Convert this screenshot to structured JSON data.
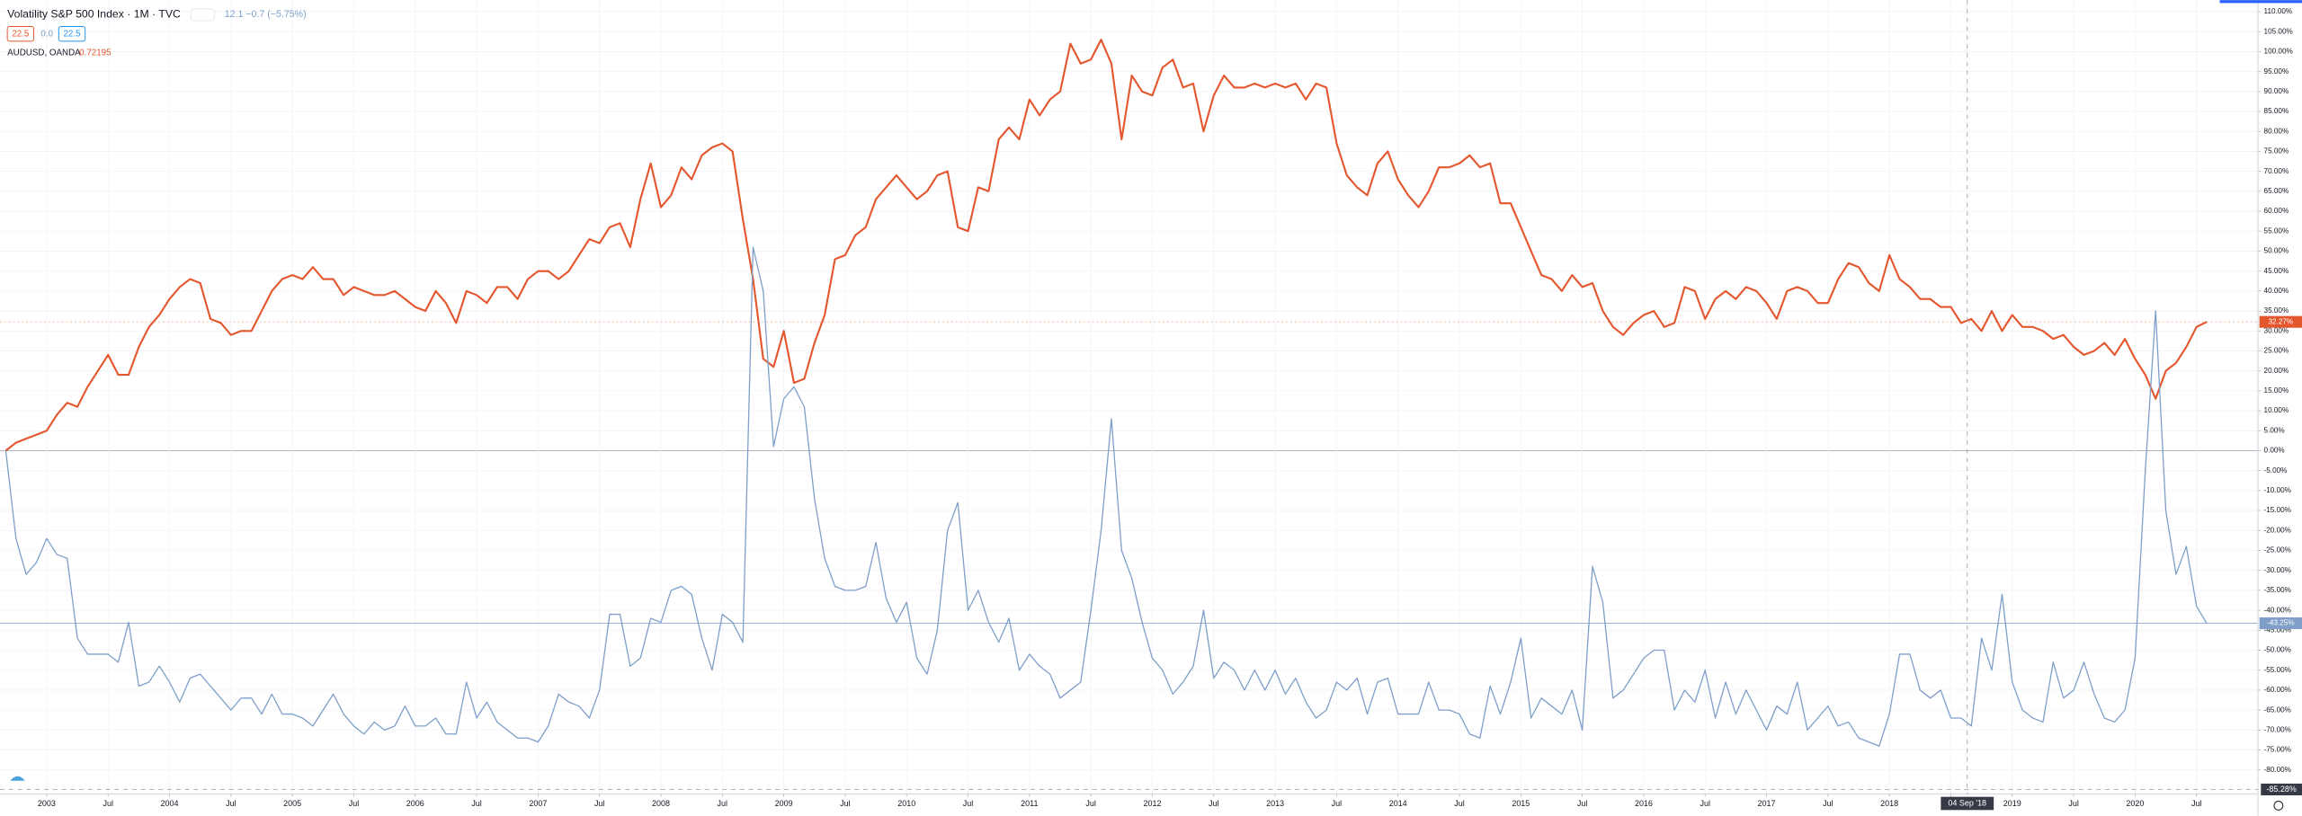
{
  "chart_data": {
    "type": "line",
    "title": "Volatility S&P 500 Index · 1M · TVC",
    "quote": "12.1 −0.7 (−5.75%)",
    "inputs": [
      "22.5",
      "0.0",
      "22.5"
    ],
    "compare_price": "0.72195",
    "crosshair_x_label": "04 Sep '18",
    "crosshair_y_label": "-85.28%",
    "grid": true,
    "xlim": [
      2002.62,
      2021.0
    ],
    "ylim": [
      -86,
      112.9
    ],
    "xticks": [
      {
        "value": 2003,
        "label": "2003"
      },
      {
        "value": 2003.5,
        "label": "Jul"
      },
      {
        "value": 2004,
        "label": "2004"
      },
      {
        "value": 2004.5,
        "label": "Jul"
      },
      {
        "value": 2005,
        "label": "2005"
      },
      {
        "value": 2005.5,
        "label": "Jul"
      },
      {
        "value": 2006,
        "label": "2006"
      },
      {
        "value": 2006.5,
        "label": "Jul"
      },
      {
        "value": 2007,
        "label": "2007"
      },
      {
        "value": 2007.5,
        "label": "Jul"
      },
      {
        "value": 2008,
        "label": "2008"
      },
      {
        "value": 2008.5,
        "label": "Jul"
      },
      {
        "value": 2009,
        "label": "2009"
      },
      {
        "value": 2009.5,
        "label": "Jul"
      },
      {
        "value": 2010,
        "label": "2010"
      },
      {
        "value": 2010.5,
        "label": "Jul"
      },
      {
        "value": 2011,
        "label": "2011"
      },
      {
        "value": 2011.5,
        "label": "Jul"
      },
      {
        "value": 2012,
        "label": "2012"
      },
      {
        "value": 2012.5,
        "label": "Jul"
      },
      {
        "value": 2013,
        "label": "2013"
      },
      {
        "value": 2013.5,
        "label": "Jul"
      },
      {
        "value": 2014,
        "label": "2014"
      },
      {
        "value": 2014.5,
        "label": "Jul"
      },
      {
        "value": 2015,
        "label": "2015"
      },
      {
        "value": 2015.5,
        "label": "Jul"
      },
      {
        "value": 2016,
        "label": "2016"
      },
      {
        "value": 2016.5,
        "label": "Jul"
      },
      {
        "value": 2017,
        "label": "2017"
      },
      {
        "value": 2017.5,
        "label": "Jul"
      },
      {
        "value": 2018,
        "label": "2018"
      },
      {
        "value": 2018.5,
        "label": "Jul"
      },
      {
        "value": 2019,
        "label": "2019"
      },
      {
        "value": 2019.5,
        "label": "Jul"
      },
      {
        "value": 2020,
        "label": "2020"
      },
      {
        "value": 2020.5,
        "label": "Jul"
      }
    ],
    "yticks": [
      {
        "value": 110,
        "label": "110.00%"
      },
      {
        "value": 105,
        "label": "105.00%"
      },
      {
        "value": 100,
        "label": "100.00%"
      },
      {
        "value": 95,
        "label": "95.00%"
      },
      {
        "value": 90,
        "label": "90.00%"
      },
      {
        "value": 85,
        "label": "85.00%"
      },
      {
        "value": 80,
        "label": "80.00%"
      },
      {
        "value": 75,
        "label": "75.00%"
      },
      {
        "value": 70,
        "label": "70.00%"
      },
      {
        "value": 65,
        "label": "65.00%"
      },
      {
        "value": 60,
        "label": "60.00%"
      },
      {
        "value": 55,
        "label": "55.00%"
      },
      {
        "value": 50,
        "label": "50.00%"
      },
      {
        "value": 45,
        "label": "45.00%"
      },
      {
        "value": 40,
        "label": "40.00%"
      },
      {
        "value": 35,
        "label": "35.00%"
      },
      {
        "value": 30,
        "label": "30.00%"
      },
      {
        "value": 25,
        "label": "25.00%"
      },
      {
        "value": 20,
        "label": "20.00%"
      },
      {
        "value": 15,
        "label": "15.00%"
      },
      {
        "value": 10,
        "label": "10.00%"
      },
      {
        "value": 5,
        "label": "5.00%"
      },
      {
        "value": 0,
        "label": "0.00%"
      },
      {
        "value": -5,
        "label": "-5.00%"
      },
      {
        "value": -10,
        "label": "-10.00%"
      },
      {
        "value": -15,
        "label": "-15.00%"
      },
      {
        "value": -20,
        "label": "-20.00%"
      },
      {
        "value": -25,
        "label": "-25.00%"
      },
      {
        "value": -30,
        "label": "-30.00%"
      },
      {
        "value": -35,
        "label": "-35.00%"
      },
      {
        "value": -40,
        "label": "-40.00%"
      },
      {
        "value": -45,
        "label": "-45.00%"
      },
      {
        "value": -50,
        "label": "-50.00%"
      },
      {
        "value": -55,
        "label": "-55.00%"
      },
      {
        "value": -60,
        "label": "-60.00%"
      },
      {
        "value": -65,
        "label": "-65.00%"
      },
      {
        "value": -70,
        "label": "-70.00%"
      },
      {
        "value": -75,
        "label": "-75.00%"
      },
      {
        "value": -80,
        "label": "-80.00%"
      }
    ],
    "x": [
      2002.667,
      2002.75,
      2002.833,
      2002.917,
      2003,
      2003.083,
      2003.167,
      2003.25,
      2003.333,
      2003.417,
      2003.5,
      2003.583,
      2003.667,
      2003.75,
      2003.833,
      2003.917,
      2004,
      2004.083,
      2004.167,
      2004.25,
      2004.333,
      2004.417,
      2004.5,
      2004.583,
      2004.667,
      2004.75,
      2004.833,
      2004.917,
      2005,
      2005.083,
      2005.167,
      2005.25,
      2005.333,
      2005.417,
      2005.5,
      2005.583,
      2005.667,
      2005.75,
      2005.833,
      2005.917,
      2006,
      2006.083,
      2006.167,
      2006.25,
      2006.333,
      2006.417,
      2006.5,
      2006.583,
      2006.667,
      2006.75,
      2006.833,
      2006.917,
      2007,
      2007.083,
      2007.167,
      2007.25,
      2007.333,
      2007.417,
      2007.5,
      2007.583,
      2007.667,
      2007.75,
      2007.833,
      2007.917,
      2008,
      2008.083,
      2008.167,
      2008.25,
      2008.333,
      2008.417,
      2008.5,
      2008.583,
      2008.667,
      2008.75,
      2008.833,
      2008.917,
      2009,
      2009.083,
      2009.167,
      2009.25,
      2009.333,
      2009.417,
      2009.5,
      2009.583,
      2009.667,
      2009.75,
      2009.833,
      2009.917,
      2010,
      2010.083,
      2010.167,
      2010.25,
      2010.333,
      2010.417,
      2010.5,
      2010.583,
      2010.667,
      2010.75,
      2010.833,
      2010.917,
      2011,
      2011.083,
      2011.167,
      2011.25,
      2011.333,
      2011.417,
      2011.5,
      2011.583,
      2011.667,
      2011.75,
      2011.833,
      2011.917,
      2012,
      2012.083,
      2012.167,
      2012.25,
      2012.333,
      2012.417,
      2012.5,
      2012.583,
      2012.667,
      2012.75,
      2012.833,
      2012.917,
      2013,
      2013.083,
      2013.167,
      2013.25,
      2013.333,
      2013.417,
      2013.5,
      2013.583,
      2013.667,
      2013.75,
      2013.833,
      2013.917,
      2014,
      2014.083,
      2014.167,
      2014.25,
      2014.333,
      2014.417,
      2014.5,
      2014.583,
      2014.667,
      2014.75,
      2014.833,
      2014.917,
      2015,
      2015.083,
      2015.167,
      2015.25,
      2015.333,
      2015.417,
      2015.5,
      2015.583,
      2015.667,
      2015.75,
      2015.833,
      2015.917,
      2016,
      2016.083,
      2016.167,
      2016.25,
      2016.333,
      2016.417,
      2016.5,
      2016.583,
      2016.667,
      2016.75,
      2016.833,
      2016.917,
      2017,
      2017.083,
      2017.167,
      2017.25,
      2017.333,
      2017.417,
      2017.5,
      2017.583,
      2017.667,
      2017.75,
      2017.833,
      2017.917,
      2018,
      2018.083,
      2018.167,
      2018.25,
      2018.333,
      2018.417,
      2018.5,
      2018.583,
      2018.667,
      2018.75,
      2018.833,
      2018.917,
      2019,
      2019.083,
      2019.167,
      2019.25,
      2019.333,
      2019.417,
      2019.5,
      2019.583,
      2019.667,
      2019.75,
      2019.833,
      2019.917,
      2020,
      2020.083,
      2020.167,
      2020.25,
      2020.333,
      2020.417,
      2020.5,
      2020.583
    ],
    "series": [
      {
        "name": "AUDUSD, OANDA",
        "color": "#e4572e",
        "last_label": "32.27%",
        "values": [
          0,
          2,
          3,
          4,
          5,
          9,
          12,
          11,
          16,
          20,
          24,
          19,
          19,
          26,
          31,
          34,
          38,
          41,
          43,
          42,
          33,
          32,
          29,
          30,
          30,
          35,
          40,
          43,
          44,
          43,
          46,
          43,
          43,
          39,
          41,
          40,
          39,
          39,
          40,
          38,
          36,
          35,
          40,
          37,
          32,
          40,
          39,
          37,
          41,
          41,
          38,
          43,
          45,
          45,
          43,
          45,
          49,
          53,
          52,
          56,
          57,
          51,
          63,
          72,
          61,
          64,
          71,
          68,
          74,
          76,
          77,
          75,
          58,
          43,
          23,
          21,
          30,
          17,
          18,
          27,
          34,
          48,
          49,
          54,
          56,
          63,
          66,
          69,
          66,
          63,
          65,
          69,
          70,
          56,
          55,
          66,
          65,
          78,
          81,
          78,
          88,
          84,
          88,
          90,
          102,
          97,
          98,
          103,
          97,
          78,
          94,
          90,
          89,
          96,
          98,
          91,
          92,
          80,
          89,
          94,
          91,
          91,
          92,
          91,
          92,
          91,
          92,
          88,
          92,
          91,
          77,
          69,
          66,
          64,
          72,
          75,
          68,
          64,
          61,
          65,
          71,
          71,
          72,
          74,
          71,
          72,
          62,
          62,
          56,
          50,
          44,
          43,
          40,
          44,
          41,
          42,
          35,
          31,
          29,
          32,
          34,
          35,
          31,
          32,
          41,
          40,
          33,
          38,
          40,
          38,
          41,
          40,
          37,
          33,
          40,
          41,
          40,
          37,
          37,
          43,
          47,
          46,
          42,
          40,
          49,
          43,
          41,
          38,
          38,
          36,
          36,
          32,
          33,
          30,
          35,
          30,
          34,
          31,
          31,
          30,
          28,
          29,
          26,
          24,
          25,
          27,
          24,
          28,
          23,
          19,
          13,
          20,
          22,
          26,
          31,
          32.27
        ]
      },
      {
        "color": "#7f9fc9",
        "last_label": "-43.25%",
        "values": [
          0,
          -22,
          -31,
          -28,
          -22,
          -26,
          -27,
          -47,
          -51,
          -51,
          -51,
          -53,
          -43,
          -59,
          -58,
          -54,
          -58,
          -63,
          -57,
          -56,
          -59,
          -62,
          -65,
          -62,
          -62,
          -66,
          -61,
          -66,
          -66,
          -67,
          -69,
          -65,
          -61,
          -66,
          -69,
          -71,
          -68,
          -70,
          -69,
          -64,
          -69,
          -69,
          -67,
          -71,
          -71,
          -58,
          -67,
          -63,
          -68,
          -70,
          -72,
          -72,
          -73,
          -69,
          -61,
          -63,
          -64,
          -67,
          -60,
          -41,
          -41,
          -54,
          -52,
          -42,
          -43,
          -35,
          -34,
          -36,
          -47,
          -55,
          -41,
          -43,
          -48,
          51,
          40,
          1,
          13,
          16,
          11,
          -12,
          -27,
          -34,
          -35,
          -35,
          -34,
          -23,
          -37,
          -43,
          -38,
          -52,
          -56,
          -45,
          -20,
          -13,
          -40,
          -35,
          -43,
          -48,
          -42,
          -55,
          -51,
          -54,
          -56,
          -62,
          -60,
          -58,
          -40,
          -20,
          8,
          -25,
          -32,
          -43,
          -52,
          -55,
          -61,
          -58,
          -54,
          -40,
          -57,
          -53,
          -55,
          -60,
          -55,
          -60,
          -55,
          -61,
          -57,
          -63,
          -67,
          -65,
          -58,
          -60,
          -57,
          -66,
          -58,
          -57,
          -66,
          -66,
          -66,
          -58,
          -65,
          -65,
          -66,
          -71,
          -72,
          -59,
          -66,
          -58,
          -47,
          -67,
          -62,
          -64,
          -66,
          -60,
          -70,
          -29,
          -38,
          -62,
          -60,
          -56,
          -52,
          -50,
          -50,
          -65,
          -60,
          -63,
          -55,
          -67,
          -58,
          -66,
          -60,
          -65,
          -70,
          -64,
          -66,
          -58,
          -70,
          -67,
          -64,
          -69,
          -68,
          -72,
          -73,
          -74,
          -66,
          -51,
          -51,
          -60,
          -62,
          -60,
          -67,
          -67,
          -69,
          -47,
          -55,
          -36,
          -58,
          -65,
          -67,
          -68,
          -53,
          -62,
          -60,
          -53,
          -61,
          -67,
          -68,
          -65,
          -52,
          -5,
          35,
          -15,
          -31,
          -24,
          -39,
          -43.25
        ]
      }
    ]
  }
}
